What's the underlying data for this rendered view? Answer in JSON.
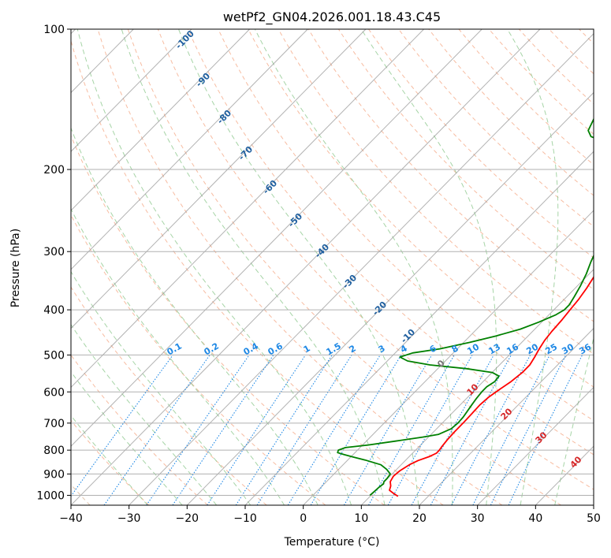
{
  "chart_data": {
    "type": "line",
    "title": "wetPf2_GN04.2026.001.18.43.C45",
    "xlabel": "Temperature (°C)",
    "ylabel": "Pressure (hPa)",
    "xlim": [
      -40,
      50
    ],
    "ylim": [
      1050,
      100
    ],
    "y_scale": "log",
    "x_ticks": [
      -40,
      -30,
      -20,
      -10,
      0,
      10,
      20,
      30,
      40,
      50
    ],
    "x_tick_labels": [
      "−40",
      "−30",
      "−20",
      "−10",
      "0",
      "10",
      "20",
      "30",
      "40",
      "50"
    ],
    "y_ticks": [
      100,
      200,
      300,
      400,
      500,
      600,
      700,
      800,
      900,
      1000
    ],
    "y_tick_labels": [
      "100",
      "200",
      "300",
      "400",
      "500",
      "600",
      "700",
      "800",
      "900",
      "1000"
    ],
    "grid": true,
    "skew": "skew-T log-P",
    "series": [
      {
        "color": "#ff0000",
        "points": [
          [
            1005,
            14.8
          ],
          [
            990,
            13.5
          ],
          [
            975,
            12.3
          ],
          [
            955,
            11.8
          ],
          [
            935,
            11.0
          ],
          [
            910,
            10.6
          ],
          [
            885,
            10.8
          ],
          [
            860,
            11.4
          ],
          [
            842,
            12.2
          ],
          [
            825,
            13.5
          ],
          [
            812,
            14.1
          ],
          [
            800,
            14.1
          ],
          [
            785,
            13.9
          ],
          [
            760,
            13.7
          ],
          [
            730,
            13.6
          ],
          [
            700,
            13.6
          ],
          [
            670,
            13.5
          ],
          [
            640,
            13.4
          ],
          [
            615,
            13.6
          ],
          [
            595,
            14.1
          ],
          [
            570,
            14.8
          ],
          [
            545,
            15.2
          ],
          [
            525,
            15.2
          ],
          [
            505,
            14.7
          ],
          [
            485,
            14.1
          ],
          [
            465,
            13.6
          ],
          [
            445,
            13.3
          ],
          [
            420,
            13.1
          ],
          [
            400,
            12.8
          ],
          [
            380,
            12.5
          ],
          [
            360,
            12.0
          ],
          [
            340,
            11.3
          ],
          [
            320,
            10.3
          ],
          [
            300,
            8.8
          ],
          [
            280,
            7.2
          ],
          [
            260,
            5.2
          ],
          [
            240,
            3.2
          ],
          [
            220,
            1.8
          ],
          [
            205,
            1.1
          ],
          [
            195,
            0.9
          ],
          [
            185,
            1.5
          ],
          [
            178,
            2.8
          ],
          [
            170,
            4.3
          ],
          [
            160,
            6.0
          ],
          [
            150,
            7.2
          ],
          [
            140,
            7.8
          ],
          [
            130,
            7.8
          ],
          [
            120,
            7.5
          ],
          [
            112,
            7.8
          ],
          [
            105,
            8.5
          ],
          [
            100,
            9.0
          ]
        ]
      },
      {
        "color": "#008000",
        "points": [
          [
            1000,
            9.8
          ],
          [
            980,
            9.9
          ],
          [
            960,
            10.0
          ],
          [
            945,
            10.2
          ],
          [
            935,
            9.9
          ],
          [
            920,
            9.9
          ],
          [
            900,
            9.7
          ],
          [
            880,
            8.3
          ],
          [
            860,
            6.5
          ],
          [
            840,
            3.0
          ],
          [
            828,
            0.5
          ],
          [
            818,
            -1.5
          ],
          [
            810,
            -3.0
          ],
          [
            800,
            -3.3
          ],
          [
            790,
            -2.5
          ],
          [
            780,
            1.0
          ],
          [
            765,
            5.0
          ],
          [
            750,
            9.0
          ],
          [
            740,
            11.3
          ],
          [
            720,
            12.5
          ],
          [
            700,
            12.7
          ],
          [
            680,
            12.6
          ],
          [
            660,
            12.3
          ],
          [
            640,
            12.0
          ],
          [
            620,
            11.7
          ],
          [
            600,
            11.5
          ],
          [
            585,
            11.5
          ],
          [
            570,
            12.0
          ],
          [
            555,
            11.8
          ],
          [
            545,
            10.0
          ],
          [
            535,
            5.0
          ],
          [
            525,
            -2.0
          ],
          [
            515,
            -6.5
          ],
          [
            505,
            -8.5
          ],
          [
            495,
            -7.0
          ],
          [
            485,
            -3.0
          ],
          [
            470,
            1.0
          ],
          [
            455,
            4.5
          ],
          [
            440,
            7.5
          ],
          [
            425,
            9.5
          ],
          [
            410,
            11.2
          ],
          [
            400,
            11.8
          ],
          [
            390,
            11.8
          ],
          [
            375,
            11.3
          ],
          [
            355,
            10.5
          ],
          [
            335,
            9.5
          ],
          [
            315,
            8.2
          ],
          [
            295,
            7.0
          ],
          [
            275,
            6.0
          ],
          [
            255,
            4.5
          ],
          [
            235,
            2.5
          ],
          [
            215,
            0.3
          ],
          [
            200,
            -0.3
          ],
          [
            190,
            1.0
          ],
          [
            183,
            0.0
          ],
          [
            178,
            -5.0
          ],
          [
            174,
            -10.0
          ],
          [
            170,
            -13.0
          ],
          [
            165,
            -14.5
          ],
          [
            155,
            -15.6
          ],
          [
            145,
            -15.6
          ],
          [
            138,
            -14.2
          ],
          [
            130,
            -11.8
          ],
          [
            120,
            -8.0
          ],
          [
            112,
            -5.0
          ],
          [
            104,
            -2.5
          ],
          [
            100,
            -1.4
          ]
        ]
      }
    ],
    "dry_adiabat_labels": [
      "-100",
      "-90",
      "-80",
      "-70",
      "-60",
      "-50",
      "-40",
      "-30",
      "-20",
      "-10",
      "0",
      "10",
      "20",
      "30",
      "40"
    ],
    "mixing_ratio_labels": [
      "0.1",
      "0.2",
      "0.4",
      "0.6",
      "1",
      "1.5",
      "2",
      "3",
      "4",
      "6",
      "8",
      "10",
      "13",
      "16",
      "20",
      "25",
      "30",
      "36"
    ]
  },
  "colors": {
    "temperature": "#ff0000",
    "dewpoint": "#008000",
    "isotherm": "#999999",
    "dry_adiabat": "#f4a582",
    "moist_adiabat": "#90c990",
    "mixing_ratio": "#1e88e5",
    "dry_adiabat_label": "#1f5f9f",
    "theta_label_red": "#d62728",
    "grid": "#b0b0b0"
  }
}
